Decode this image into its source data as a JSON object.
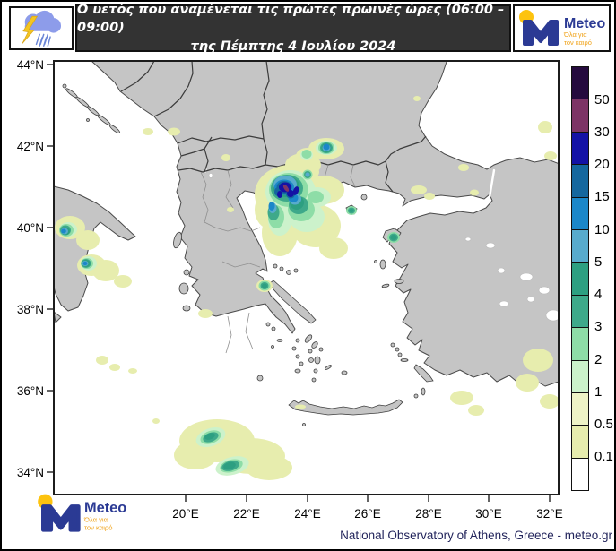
{
  "header": {
    "title_line1": "Ο υετός που αναμένεται τις πρώτες πρωινές ώρες (06:00 – 09:00)",
    "title_line2": "της Πέμπτης 4 Ιουλίου 2024"
  },
  "brand": {
    "name": "Meteo",
    "tagline_line1": "Όλα για",
    "tagline_line2": "τον καιρό",
    "blue": "#2b3a94",
    "yellow": "#fdc30f",
    "orange": "#f0a31a"
  },
  "map": {
    "lat_labels": [
      "44°N",
      "42°N",
      "40°N",
      "38°N",
      "36°N",
      "34°N"
    ],
    "lon_labels": [
      "20°E",
      "22°E",
      "24°E",
      "26°E",
      "28°E",
      "30°E",
      "32°E"
    ],
    "land_color": "#c5c5c5",
    "sea_color": "#ffffff",
    "coast_color": "#4a4a4a",
    "border_color": "#3c3c3c",
    "hotspots": [
      {
        "area": "Central Macedonia / Chalkidiki (N. Greece)",
        "max_level": "30-50"
      },
      {
        "area": "Greece-Bulgaria border (Rhodope area)",
        "max_level": "10-15"
      },
      {
        "area": "Southern Italy (Puglia / Calabria)",
        "max_level": "10-15"
      },
      {
        "area": "Sea SW of Peloponnese",
        "max_level": "4-5"
      },
      {
        "area": "Thessaly coast (Pagasetic Gulf)",
        "max_level": "4-5"
      },
      {
        "area": "NE Aegean (near Lesbos / Limnos)",
        "max_level": "4-5"
      },
      {
        "area": "SW Turkey coast",
        "max_level": "0.1-0.5"
      }
    ]
  },
  "colorbar": {
    "labels_top_to_bottom": [
      "50",
      "30",
      "20",
      "15",
      "10",
      "5",
      "4",
      "3",
      "2",
      "1",
      "0.5",
      "0.1"
    ],
    "colors_top_to_bottom": [
      "#250a3e",
      "#7d3466",
      "#1412a5",
      "#15679e",
      "#1b87c9",
      "#58abcd",
      "#2d9f81",
      "#3ea98a",
      "#8edda7",
      "#ccf2cb",
      "#eef3c6",
      "#e7edae",
      "#ffffff"
    ]
  },
  "footer": {
    "attribution": "National Observatory of Athens, Greece - meteo.gr"
  }
}
